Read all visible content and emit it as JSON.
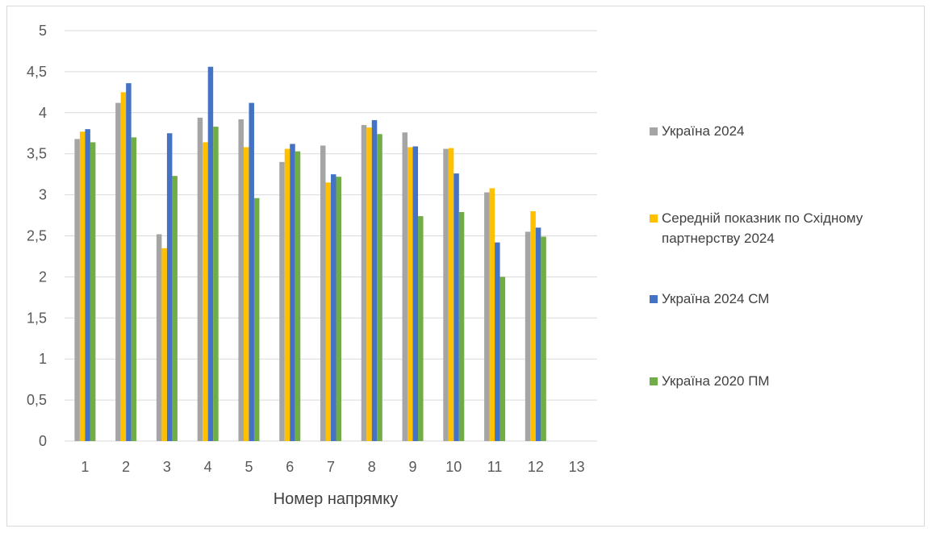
{
  "chart_data": {
    "type": "bar",
    "title": "",
    "xlabel": "Номер напрямку",
    "ylabel": "",
    "ylim": [
      0,
      5
    ],
    "yticks": [
      "0",
      "0,5",
      "1",
      "1,5",
      "2",
      "2,5",
      "3",
      "3,5",
      "4",
      "4,5",
      "5"
    ],
    "categories": [
      "1",
      "2",
      "3",
      "4",
      "5",
      "6",
      "7",
      "8",
      "9",
      "10",
      "11",
      "12",
      "13"
    ],
    "grid": true,
    "legend_position": "right",
    "series": [
      {
        "name": "Україна 2024",
        "color": "#a5a5a5",
        "values": [
          3.68,
          4.12,
          2.52,
          3.94,
          3.92,
          3.4,
          3.6,
          3.85,
          3.76,
          3.56,
          3.03,
          2.55,
          null
        ]
      },
      {
        "name": "Середній показник по Східному партнерству 2024",
        "color": "#ffc000",
        "values": [
          3.77,
          4.25,
          2.35,
          3.64,
          3.58,
          3.56,
          3.15,
          3.82,
          3.58,
          3.57,
          3.08,
          2.8,
          null
        ]
      },
      {
        "name": "Україна 2024 СМ",
        "color": "#4472c4",
        "values": [
          3.8,
          4.36,
          3.75,
          4.56,
          4.12,
          3.62,
          3.25,
          3.91,
          3.59,
          3.26,
          2.42,
          2.6,
          null
        ]
      },
      {
        "name": "Україна 2020 ПМ",
        "color": "#70ad47",
        "values": [
          3.64,
          3.7,
          3.23,
          3.83,
          2.96,
          3.53,
          3.22,
          3.74,
          2.74,
          2.79,
          2.0,
          2.49,
          null
        ]
      }
    ]
  }
}
